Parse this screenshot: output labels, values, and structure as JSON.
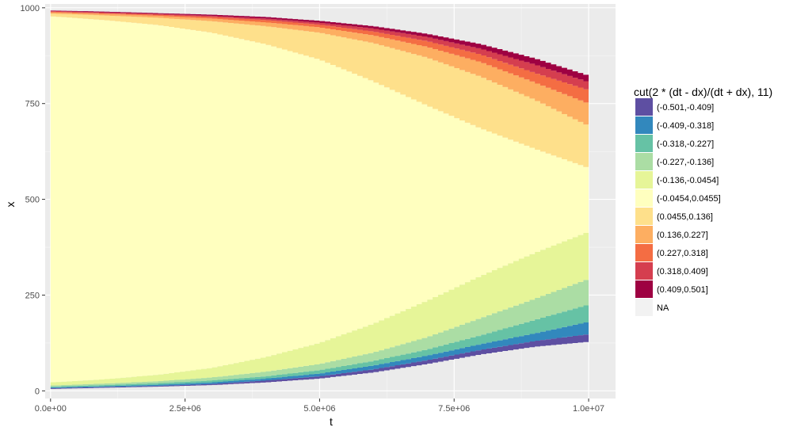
{
  "chart_data": {
    "type": "area",
    "title": "",
    "xlabel": "t",
    "ylabel": "x",
    "xlim": [
      -100000,
      10500000
    ],
    "ylim": [
      -20,
      1010
    ],
    "x_ticks": [
      {
        "value": 0,
        "label": "0.0e+00"
      },
      {
        "value": 2500000,
        "label": "2.5e+06"
      },
      {
        "value": 5000000,
        "label": "5.0e+06"
      },
      {
        "value": 7500000,
        "label": "7.5e+06"
      },
      {
        "value": 10000000,
        "label": "1.0e+07"
      }
    ],
    "y_ticks": [
      {
        "value": 0,
        "label": "0"
      },
      {
        "value": 250,
        "label": "250"
      },
      {
        "value": 500,
        "label": "500"
      },
      {
        "value": 750,
        "label": "750"
      },
      {
        "value": 1000,
        "label": "1000"
      }
    ],
    "grid": true,
    "background": "#ebebeb",
    "legend": {
      "title": "cut(2 * (dt - dx)/(dt + dx), 11)",
      "position": "right"
    },
    "t": [
      0,
      1000000,
      2000000,
      3000000,
      4000000,
      5000000,
      6000000,
      7000000,
      8000000,
      9000000,
      10000000
    ],
    "series": [
      {
        "name": "(-0.501,-0.409]",
        "color": "#5e4fa2",
        "lower": [
          5,
          8,
          11,
          15,
          22,
          32,
          48,
          70,
          95,
          115,
          128
        ],
        "upper": [
          7,
          10,
          13,
          18,
          27,
          38,
          56,
          80,
          107,
          130,
          148
        ]
      },
      {
        "name": "(-0.409,-0.318]",
        "color": "#3288bd",
        "lower": [
          7,
          10,
          13,
          18,
          27,
          38,
          56,
          80,
          107,
          130,
          148
        ],
        "upper": [
          9,
          12,
          16,
          22,
          32,
          45,
          66,
          92,
          122,
          150,
          180
        ]
      },
      {
        "name": "(-0.318,-0.227]",
        "color": "#66c2a5",
        "lower": [
          9,
          12,
          16,
          22,
          32,
          45,
          66,
          92,
          122,
          150,
          180
        ],
        "upper": [
          11,
          15,
          20,
          27,
          38,
          54,
          78,
          108,
          145,
          185,
          225
        ]
      },
      {
        "name": "(-0.227,-0.136]",
        "color": "#abdda4",
        "lower": [
          11,
          15,
          20,
          27,
          38,
          54,
          78,
          108,
          145,
          185,
          225
        ],
        "upper": [
          14,
          19,
          25,
          35,
          50,
          70,
          100,
          140,
          190,
          240,
          292
        ]
      },
      {
        "name": "(-0.136,-0.0454]",
        "color": "#e6f598",
        "lower": [
          14,
          19,
          25,
          35,
          50,
          70,
          100,
          140,
          190,
          240,
          292
        ],
        "upper": [
          22,
          30,
          42,
          60,
          88,
          125,
          175,
          235,
          300,
          360,
          415
        ]
      },
      {
        "name": "(-0.0454,0.0455]",
        "color": "#ffffbf",
        "lower": [
          22,
          30,
          42,
          60,
          88,
          125,
          175,
          235,
          300,
          360,
          415
        ],
        "upper": [
          978,
          968,
          955,
          935,
          905,
          865,
          808,
          745,
          685,
          632,
          582
        ]
      },
      {
        "name": "(0.0455,0.136]",
        "color": "#fee08b",
        "lower": [
          978,
          968,
          955,
          935,
          905,
          865,
          808,
          745,
          685,
          632,
          582
        ],
        "upper": [
          985,
          980,
          974,
          965,
          952,
          935,
          908,
          870,
          820,
          760,
          692
        ]
      },
      {
        "name": "(0.136,0.227]",
        "color": "#fdae61",
        "lower": [
          985,
          980,
          974,
          965,
          952,
          935,
          908,
          870,
          820,
          760,
          692
        ],
        "upper": [
          988,
          984,
          979,
          972,
          962,
          949,
          928,
          898,
          858,
          805,
          750
        ]
      },
      {
        "name": "(0.227,0.318]",
        "color": "#f46d43",
        "lower": [
          988,
          984,
          979,
          972,
          962,
          949,
          928,
          898,
          858,
          805,
          750
        ],
        "upper": [
          990,
          986,
          982,
          976,
          968,
          956,
          938,
          913,
          878,
          830,
          785
        ]
      },
      {
        "name": "(0.318,0.409]",
        "color": "#d53e4f",
        "lower": [
          990,
          986,
          982,
          976,
          968,
          956,
          938,
          913,
          878,
          830,
          785
        ],
        "upper": [
          992,
          988,
          984,
          979,
          972,
          961,
          946,
          924,
          893,
          852,
          806
        ]
      },
      {
        "name": "(0.409,0.501]",
        "color": "#9e0142",
        "lower": [
          992,
          988,
          984,
          979,
          972,
          961,
          946,
          924,
          893,
          852,
          806
        ],
        "upper": [
          993,
          990,
          986,
          982,
          976,
          966,
          952,
          932,
          905,
          868,
          823
        ]
      },
      {
        "name": "NA",
        "color": "#f2f2f2",
        "lower": [],
        "upper": []
      }
    ]
  }
}
